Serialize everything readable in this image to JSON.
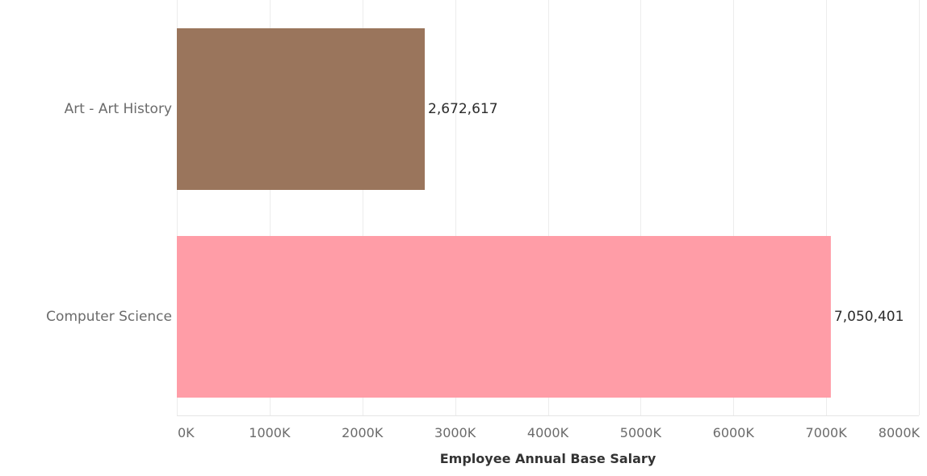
{
  "chart_data": {
    "type": "bar",
    "orientation": "horizontal",
    "categories": [
      "Art - Art History",
      "Computer Science"
    ],
    "values": [
      2672617,
      7050401
    ],
    "value_labels": [
      "2,672,617",
      "7,050,401"
    ],
    "colors": [
      "#9a755c",
      "#ff9da7"
    ],
    "xlabel": "Employee Annual Base Salary",
    "ylabel": "",
    "xlim": [
      0,
      8000000
    ],
    "x_ticks": [
      0,
      1000000,
      2000000,
      3000000,
      4000000,
      5000000,
      6000000,
      7000000,
      8000000
    ],
    "x_tick_labels": [
      "0K",
      "1000K",
      "2000K",
      "3000K",
      "4000K",
      "5000K",
      "6000K",
      "7000K",
      "8000K"
    ],
    "grid": true,
    "legend": "none"
  }
}
